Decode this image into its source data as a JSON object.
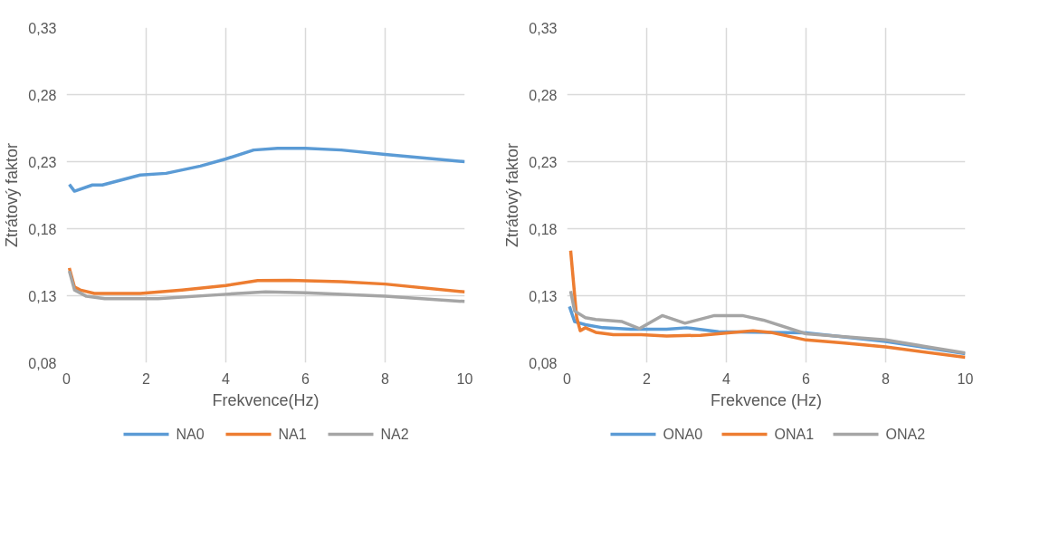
{
  "chart_data": [
    {
      "type": "line",
      "xlabel": "Frekvence(Hz)",
      "ylabel": "Ztrátový faktor",
      "xlim": [
        0,
        10
      ],
      "ylim": [
        0.08,
        0.33
      ],
      "xticks": [
        0,
        2,
        4,
        6,
        8,
        10
      ],
      "yticks": [
        {
          "value": 0.08,
          "label": "0,08"
        },
        {
          "value": 0.13,
          "label": "0,13"
        },
        {
          "value": 0.18,
          "label": "0,18"
        },
        {
          "value": 0.23,
          "label": "0,23"
        },
        {
          "value": 0.28,
          "label": "0,28"
        },
        {
          "value": 0.33,
          "label": "0,33"
        }
      ],
      "grid": true,
      "legend": "bottom",
      "marker": "none",
      "line_style": "solid",
      "series": [
        {
          "name": "NA0",
          "color": "#5b9bd5",
          "x": [
            0.07,
            0.2,
            0.65,
            0.9,
            1.85,
            2.5,
            3.36,
            4.0,
            4.7,
            5.3,
            6.0,
            6.9,
            8.0,
            10.0
          ],
          "values": [
            0.213,
            0.208,
            0.2126,
            0.2126,
            0.22,
            0.2213,
            0.2267,
            0.232,
            0.2387,
            0.24,
            0.24,
            0.2387,
            0.2354,
            0.23
          ]
        },
        {
          "name": "NA1",
          "color": "#ed7d31",
          "x": [
            0.07,
            0.2,
            0.34,
            0.7,
            1.85,
            2.9,
            4.0,
            4.8,
            5.6,
            6.9,
            8.0,
            10.0
          ],
          "values": [
            0.1507,
            0.1365,
            0.1343,
            0.1317,
            0.1317,
            0.1343,
            0.1376,
            0.1413,
            0.1415,
            0.1404,
            0.1387,
            0.1328
          ]
        },
        {
          "name": "NA2",
          "color": "#a5a5a5",
          "x": [
            0.07,
            0.2,
            0.5,
            0.96,
            2.3,
            4.0,
            5.0,
            6.0,
            8.0,
            10.0
          ],
          "values": [
            0.1485,
            0.1343,
            0.1296,
            0.1278,
            0.1278,
            0.1311,
            0.1328,
            0.1322,
            0.1296,
            0.1257
          ]
        }
      ]
    },
    {
      "type": "line",
      "xlabel": "Frekvence (Hz)",
      "ylabel": "Ztrátový faktor",
      "xlim": [
        0,
        10
      ],
      "ylim": [
        0.08,
        0.33
      ],
      "xticks": [
        0,
        2,
        4,
        6,
        8,
        10
      ],
      "yticks": [
        {
          "value": 0.08,
          "label": "0,08"
        },
        {
          "value": 0.13,
          "label": "0,13"
        },
        {
          "value": 0.18,
          "label": "0,18"
        },
        {
          "value": 0.23,
          "label": "0,23"
        },
        {
          "value": 0.28,
          "label": "0,28"
        },
        {
          "value": 0.33,
          "label": "0,33"
        }
      ],
      "grid": true,
      "legend": "bottom",
      "marker": "none",
      "line_style": "solid",
      "series": [
        {
          "name": "ONA0",
          "color": "#5b9bd5",
          "x": [
            0.06,
            0.19,
            0.46,
            0.9,
            1.6,
            2.5,
            3.0,
            3.8,
            5.1,
            6.0,
            8.0,
            10.0
          ],
          "values": [
            0.122,
            0.1107,
            0.1084,
            0.1061,
            0.105,
            0.105,
            0.1061,
            0.1032,
            0.1027,
            0.1023,
            0.0959,
            0.0868
          ]
        },
        {
          "name": "ONA1",
          "color": "#ed7d31",
          "x": [
            0.09,
            0.24,
            0.33,
            0.46,
            0.72,
            1.16,
            1.86,
            2.5,
            3.35,
            4.05,
            4.67,
            5.1,
            6.0,
            6.9,
            8.0,
            10.0
          ],
          "values": [
            0.1636,
            0.114,
            0.1039,
            0.1061,
            0.1027,
            0.1009,
            0.1009,
            0.1,
            0.1005,
            0.1023,
            0.1039,
            0.1027,
            0.097,
            0.0948,
            0.0918,
            0.0841
          ]
        },
        {
          "name": "ONA2",
          "color": "#a5a5a5",
          "x": [
            0.09,
            0.19,
            0.46,
            0.72,
            1.38,
            1.82,
            2.39,
            2.96,
            3.7,
            4.4,
            4.93,
            6.0,
            8.0,
            10.0
          ],
          "values": [
            0.1334,
            0.1186,
            0.1136,
            0.1123,
            0.1107,
            0.1055,
            0.1152,
            0.1095,
            0.1152,
            0.1152,
            0.1118,
            0.1016,
            0.097,
            0.0873
          ]
        }
      ]
    }
  ]
}
